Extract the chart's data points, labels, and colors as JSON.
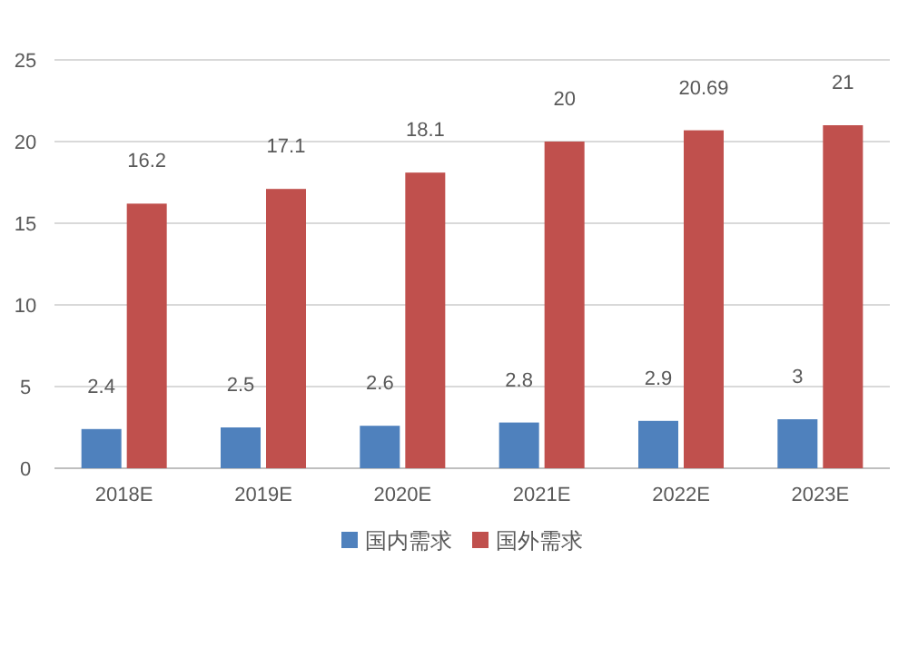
{
  "chart_data": {
    "type": "bar",
    "categories": [
      "2018E",
      "2019E",
      "2020E",
      "2021E",
      "2022E",
      "2023E"
    ],
    "series": [
      {
        "name": "国内需求",
        "color": "#4f81bd",
        "values": [
          2.4,
          2.5,
          2.6,
          2.8,
          2.9,
          3
        ]
      },
      {
        "name": "国外需求",
        "color": "#c0504d",
        "values": [
          16.2,
          17.1,
          18.1,
          20,
          20.69,
          21
        ]
      }
    ],
    "ylim": [
      0,
      25
    ],
    "yticks": [
      0,
      5,
      10,
      15,
      20,
      25
    ],
    "grid": "y",
    "legend": "bottom",
    "data_labels": true
  }
}
